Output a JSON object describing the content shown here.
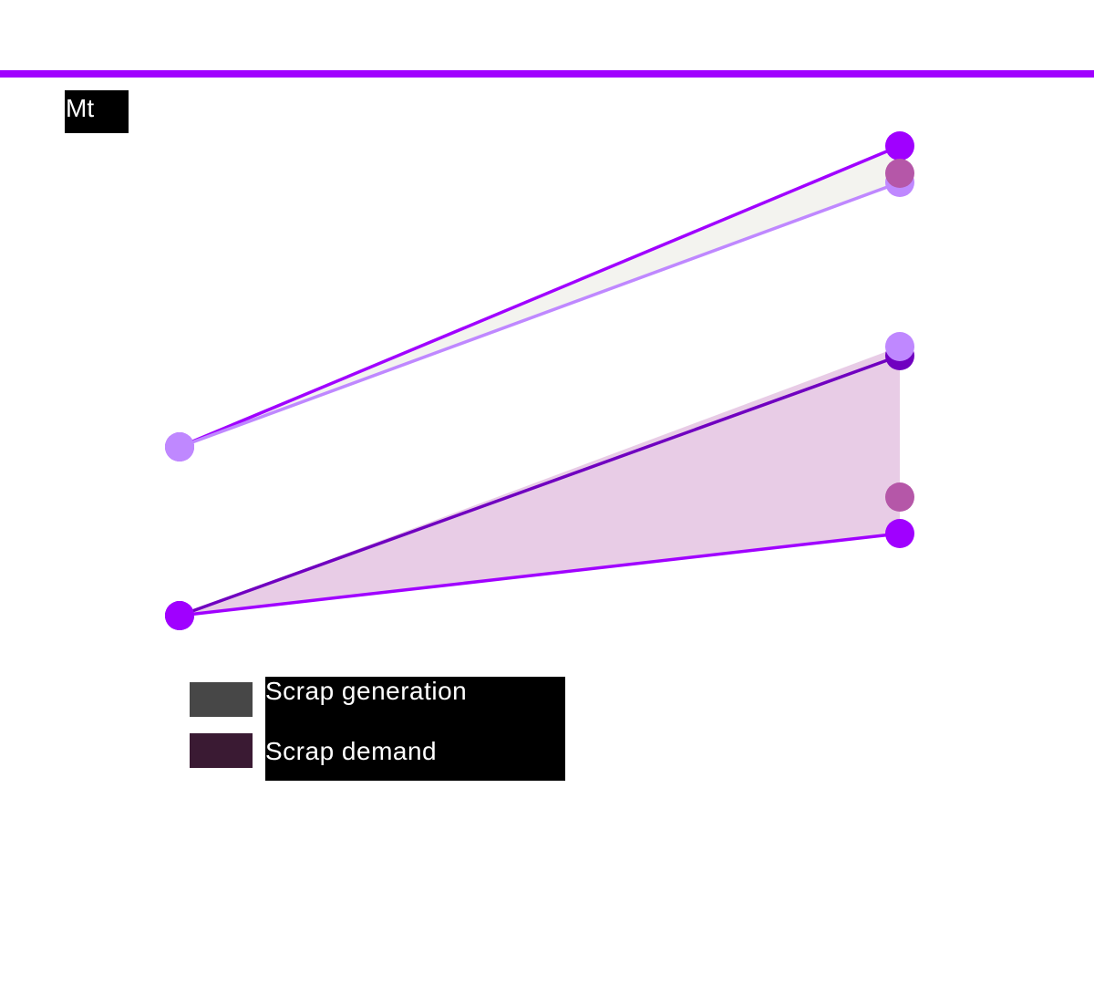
{
  "chart_data": {
    "type": "line",
    "unit_label": "Mt",
    "x": [
      0,
      1
    ],
    "ylim": [
      0,
      115
    ],
    "grid": false,
    "legend_position": "bottom-left",
    "series": [
      {
        "group": "Scrap generation",
        "color": "#a000ff",
        "values": [
          42,
          108
        ]
      },
      {
        "group": "Scrap generation",
        "color": "#bf88ff",
        "values": [
          42,
          100
        ]
      },
      {
        "group": "Scrap demand",
        "color": "#7000c0",
        "values": [
          5,
          62
        ]
      },
      {
        "group": "Scrap demand",
        "color": "#a000ff",
        "values": [
          5,
          23
        ]
      }
    ],
    "extra_points": [
      {
        "x": 1,
        "y": 102,
        "color": "#b557a8"
      },
      {
        "x": 1,
        "y": 64,
        "color": "#bf88ff"
      },
      {
        "x": 1,
        "y": 31,
        "color": "#b557a8"
      }
    ],
    "bands": [
      {
        "name": "Scrap generation",
        "color": "#f3f3ef",
        "lower": [
          42,
          100
        ],
        "upper": [
          42,
          108
        ]
      },
      {
        "name": "Scrap demand",
        "color": "#e8cce6",
        "lower": [
          5,
          23
        ],
        "upper": [
          5,
          64
        ]
      }
    ],
    "legend": [
      {
        "label": "Scrap generation",
        "color": "#474747"
      },
      {
        "label": "Scrap demand",
        "color": "#3a1a33"
      }
    ],
    "accent_color": "#a000ff"
  }
}
